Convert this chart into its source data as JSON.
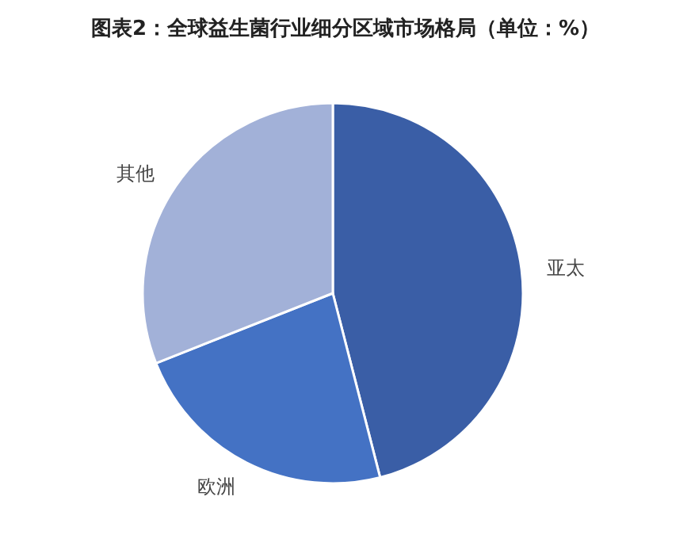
{
  "chart_data": {
    "type": "pie",
    "title": "图表2：全球益生菌行业细分区域市场格局（单位：%）",
    "categories": [
      "亚太",
      "欧洲",
      "其他"
    ],
    "values": [
      46,
      23,
      31
    ],
    "colors": [
      "#3a5ea6",
      "#4472c4",
      "#a2b1d8"
    ]
  }
}
